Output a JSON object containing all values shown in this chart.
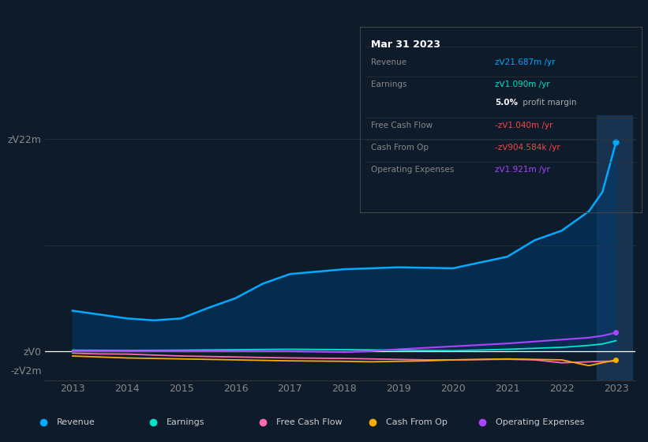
{
  "bg_color": "#0d1b2a",
  "plot_bg_color": "#0d1b2a",
  "grid_color": "#1e3a4a",
  "legend_items": [
    {
      "label": "Revenue",
      "color": "#00aaff"
    },
    {
      "label": "Earnings",
      "color": "#00e5cc"
    },
    {
      "label": "Free Cash Flow",
      "color": "#ff69b4"
    },
    {
      "label": "Cash From Op",
      "color": "#ffaa00"
    },
    {
      "label": "Operating Expenses",
      "color": "#aa44ff"
    }
  ],
  "tooltip_date": "Mar 31 2023",
  "tooltip_rows": [
    {
      "label": "Revenue",
      "value": "zᐯ21.687m /yr",
      "value_color": "#00aaff",
      "bold": false,
      "extra": ""
    },
    {
      "label": "Earnings",
      "value": "zᐯ1.090m /yr",
      "value_color": "#00e5cc",
      "bold": false,
      "extra": ""
    },
    {
      "label": "",
      "value": "5.0%",
      "value_color": "#ffffff",
      "bold": true,
      "extra": " profit margin"
    },
    {
      "label": "Free Cash Flow",
      "value": "-zᐯ1.040m /yr",
      "value_color": "#ff4444",
      "bold": false,
      "extra": ""
    },
    {
      "label": "Cash From Op",
      "value": "-zᐯ904.584k /yr",
      "value_color": "#ff4444",
      "bold": false,
      "extra": ""
    },
    {
      "label": "Operating Expenses",
      "value": "zᐯ1.921m /yr",
      "value_color": "#aa44ff",
      "bold": false,
      "extra": ""
    }
  ],
  "x_years": [
    2013,
    2013.25,
    2013.5,
    2014,
    2014.5,
    2015,
    2015.5,
    2016,
    2016.5,
    2017,
    2018,
    2018.5,
    2019,
    2019.5,
    2020,
    2020.5,
    2021,
    2021.5,
    2022,
    2022.5,
    2022.75,
    2023
  ],
  "revenue_detail": [
    4200000,
    4000000,
    3800000,
    3400000,
    3200000,
    3400000,
    4500000,
    5500000,
    7000000,
    8000000,
    8500000,
    8600000,
    8700000,
    8650000,
    8600000,
    9200000,
    9800000,
    11500000,
    12500000,
    14500000,
    16500000,
    21687000
  ],
  "earnings_detail": [
    100000,
    95000,
    90000,
    80000,
    90000,
    100000,
    130000,
    150000,
    180000,
    200000,
    160000,
    130000,
    100000,
    80000,
    50000,
    120000,
    200000,
    300000,
    400000,
    600000,
    750000,
    1090000
  ],
  "fcf_detail": [
    -200000,
    -250000,
    -280000,
    -300000,
    -400000,
    -500000,
    -550000,
    -600000,
    -650000,
    -700000,
    -750000,
    -800000,
    -850000,
    -900000,
    -900000,
    -870000,
    -840000,
    -900000,
    -1200000,
    -1100000,
    -1050000,
    -1040000
  ],
  "cashop_detail": [
    -500000,
    -550000,
    -600000,
    -700000,
    -750000,
    -800000,
    -850000,
    -900000,
    -950000,
    -1000000,
    -1050000,
    -1100000,
    -1050000,
    -1000000,
    -900000,
    -850000,
    -800000,
    -850000,
    -900000,
    -1500000,
    -1200000,
    -904584
  ],
  "opex_detail": [
    0,
    0,
    0,
    0,
    0,
    0,
    0,
    0,
    0,
    0,
    -100000,
    0,
    200000,
    350000,
    500000,
    650000,
    800000,
    1000000,
    1200000,
    1400000,
    1600000,
    1921000
  ],
  "highlight_x_start": 2022.65,
  "highlight_x_end": 2023.3,
  "ylim": [
    -3000000,
    24500000
  ],
  "xlim": [
    2012.5,
    2023.35
  ],
  "yticks": [
    -2000000,
    0,
    22000000
  ],
  "ytick_labels": [
    "-zᐯ2m",
    "zᐯ0",
    "zᐯ22m"
  ],
  "xtick_vals": [
    2013,
    2014,
    2015,
    2016,
    2017,
    2018,
    2019,
    2020,
    2021,
    2022,
    2023
  ],
  "xtick_labels": [
    "2013",
    "2014",
    "2015",
    "2016",
    "2017",
    "2018",
    "2019",
    "2020",
    "2021",
    "2022",
    "2023"
  ]
}
